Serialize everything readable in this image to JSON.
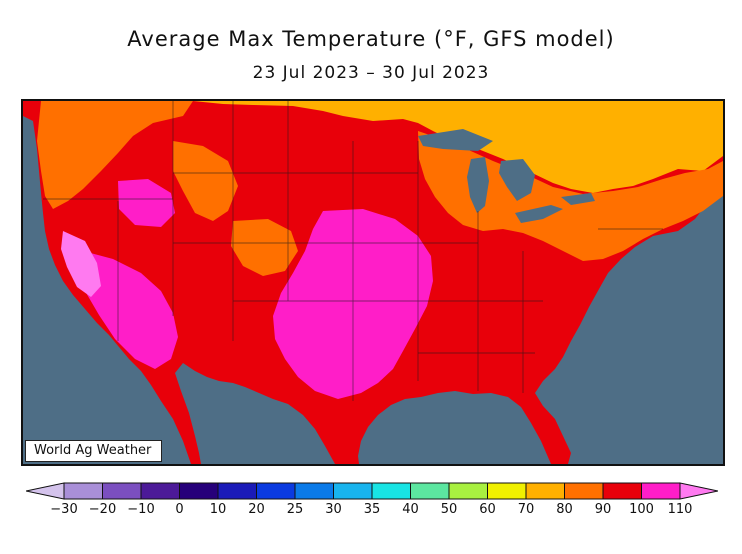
{
  "title": "Average Max Temperature (°F, GFS model)",
  "subtitle": "23 Jul 2023 – 30 Jul 2023",
  "credit": "World Ag Weather",
  "map": {
    "region": "Contiguous United States",
    "water_color": "#4e6e86",
    "land_base_color": "#e8000a",
    "zones": [
      {
        "name": "Canada 70-80F",
        "color": "#ffb000"
      },
      {
        "name": "Northern plains 90-100F",
        "color": "#e8000a"
      },
      {
        "name": "Pacific Northwest 80-90F",
        "color": "#ff7000"
      },
      {
        "name": "Rockies 80-90F",
        "color": "#ff7000"
      },
      {
        "name": "Great Lakes / Northeast 80-90F",
        "color": "#ff7000"
      },
      {
        "name": "Southern plains / Texas 100-110F",
        "color": "#ff1ec8"
      },
      {
        "name": "Desert Southwest 100-110F",
        "color": "#ff1ec8"
      },
      {
        "name": "Central Valley / Death Valley 110+F",
        "color": "#ff7af0"
      },
      {
        "name": "Southeast 90-100F",
        "color": "#e8000a"
      }
    ]
  },
  "colorbar": {
    "labels": [
      "-30",
      "-20",
      "-10",
      "0",
      "10",
      "20",
      "25",
      "30",
      "35",
      "40",
      "50",
      "60",
      "70",
      "80",
      "90",
      "100",
      "110"
    ],
    "colors": [
      "#d4c3ec",
      "#a98fd8",
      "#7b4fc0",
      "#4c1a98",
      "#26007a",
      "#1a1ab8",
      "#0a3ae0",
      "#0a7ae8",
      "#18b4ee",
      "#18e4e4",
      "#5ce6a0",
      "#a8f040",
      "#f0f000",
      "#ffb000",
      "#ff7000",
      "#e8000a",
      "#ff1ec8",
      "#ff7af0"
    ]
  }
}
